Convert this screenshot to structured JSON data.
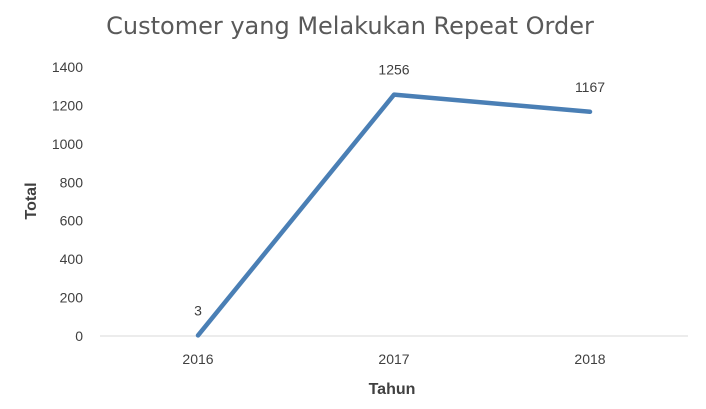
{
  "chart_data": {
    "type": "line",
    "title": "Customer yang Melakukan Repeat Order",
    "xlabel": "Tahun",
    "ylabel": "Total",
    "categories": [
      "2016",
      "2017",
      "2018"
    ],
    "series": [
      {
        "values": [
          3,
          1256,
          1167
        ],
        "color": "#4a7fb5"
      }
    ],
    "data_labels": [
      "3",
      "1256",
      "1167"
    ],
    "y_ticks": [
      "0",
      "200",
      "400",
      "600",
      "800",
      "1000",
      "1200",
      "1400"
    ],
    "ylim": [
      0,
      1400
    ],
    "grid": false,
    "legend": "none"
  }
}
